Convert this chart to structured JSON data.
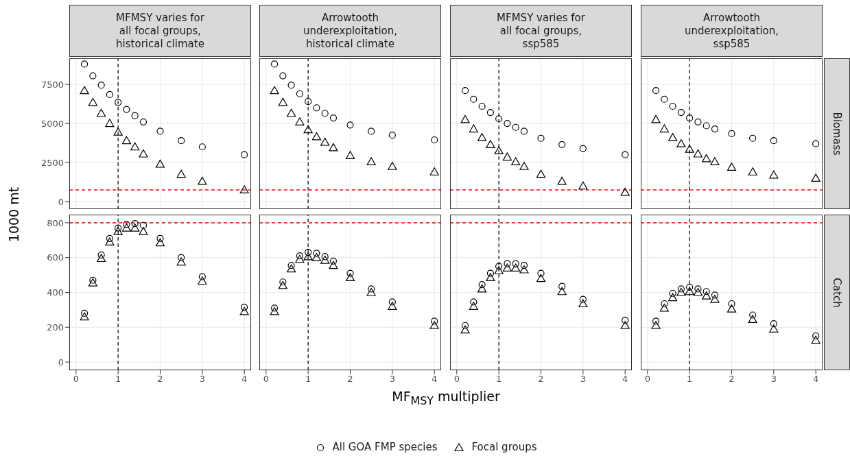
{
  "chart_data": [
    {
      "type": "scatter",
      "title": "MFMSY varies for\nall focal groups,\nhistorical climate",
      "ylabel": "1000 mt",
      "legend": "bottom",
      "grid": true,
      "tick_labels": "y",
      "x": [
        0.2,
        0.4,
        0.6,
        0.8,
        1,
        1.2,
        1.4,
        1.6,
        2,
        2.5,
        3,
        4
      ],
      "xlim": [
        -0.16,
        4.16
      ],
      "xticks": [
        0,
        1,
        2,
        3,
        4
      ],
      "ylim": [
        -480,
        9170
      ],
      "yticks": [
        0,
        2500,
        5000,
        7500
      ],
      "series": [
        {
          "name": "All GOA FMP species",
          "color": "#000000",
          "marker": "circle",
          "values": [
            8800,
            8050,
            7450,
            6850,
            6350,
            5900,
            5500,
            5100,
            4500,
            3900,
            3500,
            3000
          ]
        },
        {
          "name": "Focal groups",
          "color": "#000000",
          "marker": "triangle",
          "values": [
            7100,
            6350,
            5650,
            5000,
            4450,
            3900,
            3500,
            3050,
            2400,
            1750,
            1300,
            750
          ]
        }
      ],
      "ref_lines": [
        {
          "axis": "y",
          "value": 750,
          "color": "#ff0000",
          "line_style": "dashed"
        },
        {
          "axis": "x",
          "value": 1,
          "color": "#000000",
          "line_style": "dashed"
        }
      ]
    },
    {
      "type": "scatter",
      "title": "Arrowtooth\nunderexploitation,\nhistorical climate",
      "grid": true,
      "tick_labels": false,
      "x": [
        0.2,
        0.4,
        0.6,
        0.8,
        1,
        1.2,
        1.4,
        1.6,
        2,
        2.5,
        3,
        4
      ],
      "xlim": [
        -0.16,
        4.16
      ],
      "xticks": [
        0,
        1,
        2,
        3,
        4
      ],
      "ylim": [
        -480,
        9170
      ],
      "yticks": [
        0,
        2500,
        5000,
        7500
      ],
      "series": [
        {
          "color": "#000000",
          "marker": "circle",
          "values": [
            8800,
            8050,
            7450,
            6900,
            6400,
            6000,
            5650,
            5350,
            4900,
            4500,
            4250,
            3950
          ]
        },
        {
          "color": "#000000",
          "marker": "triangle",
          "values": [
            7100,
            6350,
            5650,
            5100,
            4600,
            4150,
            3800,
            3450,
            2950,
            2550,
            2250,
            1900
          ]
        }
      ],
      "ref_lines": [
        {
          "axis": "y",
          "value": 750,
          "color": "#ff0000",
          "line_style": "dashed"
        },
        {
          "axis": "x",
          "value": 1,
          "color": "#000000",
          "line_style": "dashed"
        }
      ]
    },
    {
      "type": "scatter",
      "title": "MFMSY varies for\nall focal groups,\nssp585",
      "grid": true,
      "tick_labels": false,
      "x": [
        0.2,
        0.4,
        0.6,
        0.8,
        1,
        1.2,
        1.4,
        1.6,
        2,
        2.5,
        3,
        4
      ],
      "xlim": [
        -0.16,
        4.16
      ],
      "xticks": [
        0,
        1,
        2,
        3,
        4
      ],
      "ylim": [
        -480,
        9170
      ],
      "yticks": [
        0,
        2500,
        5000,
        7500
      ],
      "series": [
        {
          "color": "#000000",
          "marker": "circle",
          "values": [
            7100,
            6550,
            6100,
            5700,
            5300,
            5000,
            4750,
            4500,
            4050,
            3650,
            3400,
            3000
          ]
        },
        {
          "color": "#000000",
          "marker": "triangle",
          "values": [
            5250,
            4650,
            4100,
            3650,
            3250,
            2850,
            2550,
            2250,
            1750,
            1300,
            1000,
            600
          ]
        }
      ],
      "ref_lines": [
        {
          "axis": "y",
          "value": 750,
          "color": "#ff0000",
          "line_style": "dashed"
        },
        {
          "axis": "x",
          "value": 1,
          "color": "#000000",
          "line_style": "dashed"
        }
      ]
    },
    {
      "type": "scatter",
      "title": "Arrowtooth\nunderexploitation,\nssp585",
      "y2label": "Biomass",
      "grid": true,
      "tick_labels": false,
      "x": [
        0.2,
        0.4,
        0.6,
        0.8,
        1,
        1.2,
        1.4,
        1.6,
        2,
        2.5,
        3,
        4
      ],
      "xlim": [
        -0.16,
        4.16
      ],
      "xticks": [
        0,
        1,
        2,
        3,
        4
      ],
      "ylim": [
        -480,
        9170
      ],
      "yticks": [
        0,
        2500,
        5000,
        7500
      ],
      "series": [
        {
          "color": "#000000",
          "marker": "circle",
          "values": [
            7100,
            6550,
            6100,
            5700,
            5350,
            5100,
            4850,
            4650,
            4350,
            4050,
            3900,
            3700
          ]
        },
        {
          "color": "#000000",
          "marker": "triangle",
          "values": [
            5250,
            4650,
            4100,
            3700,
            3350,
            3050,
            2750,
            2550,
            2200,
            1900,
            1700,
            1500
          ]
        }
      ],
      "ref_lines": [
        {
          "axis": "y",
          "value": 750,
          "color": "#ff0000",
          "line_style": "dashed"
        },
        {
          "axis": "x",
          "value": 1,
          "color": "#000000",
          "line_style": "dashed"
        }
      ]
    },
    {
      "type": "scatter",
      "grid": true,
      "x": [
        0.2,
        0.4,
        0.6,
        0.8,
        1,
        1.2,
        1.4,
        1.6,
        2,
        2.5,
        3,
        4
      ],
      "xlim": [
        -0.16,
        4.16
      ],
      "xticks": [
        0,
        1,
        2,
        3,
        4
      ],
      "ylim": [
        -47,
        847
      ],
      "yticks": [
        0,
        200,
        400,
        600,
        800
      ],
      "series": [
        {
          "color": "#000000",
          "marker": "circle",
          "values": [
            280,
            470,
            615,
            710,
            770,
            790,
            795,
            785,
            710,
            600,
            490,
            315
          ]
        },
        {
          "color": "#000000",
          "marker": "triangle",
          "values": [
            260,
            455,
            595,
            690,
            750,
            770,
            770,
            750,
            685,
            575,
            465,
            290
          ]
        }
      ],
      "ref_lines": [
        {
          "axis": "y",
          "value": 800,
          "color": "#ff0000",
          "line_style": "dashed"
        },
        {
          "axis": "x",
          "value": 1,
          "color": "#000000",
          "line_style": "dashed"
        }
      ]
    },
    {
      "type": "scatter",
      "xlabel": "MF$_{MSY}$ multiplier",
      "grid": true,
      "tick_labels": "x",
      "x": [
        0.2,
        0.4,
        0.6,
        0.8,
        1,
        1.2,
        1.4,
        1.6,
        2,
        2.5,
        3,
        4
      ],
      "xlim": [
        -0.16,
        4.16
      ],
      "xticks": [
        0,
        1,
        2,
        3,
        4
      ],
      "ylim": [
        -47,
        847
      ],
      "yticks": [
        0,
        200,
        400,
        600,
        800
      ],
      "series": [
        {
          "color": "#000000",
          "marker": "circle",
          "values": [
            310,
            460,
            555,
            610,
            630,
            625,
            605,
            580,
            510,
            420,
            345,
            235
          ]
        },
        {
          "color": "#000000",
          "marker": "triangle",
          "values": [
            290,
            440,
            535,
            590,
            605,
            600,
            585,
            555,
            485,
            400,
            320,
            210
          ]
        }
      ],
      "ref_lines": [
        {
          "axis": "y",
          "value": 800,
          "color": "#ff0000",
          "line_style": "dashed"
        },
        {
          "axis": "x",
          "value": 1,
          "color": "#000000",
          "line_style": "dashed"
        }
      ]
    },
    {
      "type": "scatter",
      "grid": true,
      "tick_labels": "x",
      "x": [
        0.2,
        0.4,
        0.6,
        0.8,
        1,
        1.2,
        1.4,
        1.6,
        2,
        2.5,
        3,
        4
      ],
      "xlim": [
        -0.16,
        4.16
      ],
      "xticks": [
        0,
        1,
        2,
        3,
        4
      ],
      "ylim": [
        -47,
        847
      ],
      "yticks": [
        0,
        200,
        400,
        600,
        800
      ],
      "series": [
        {
          "color": "#000000",
          "marker": "circle",
          "values": [
            210,
            345,
            445,
            510,
            550,
            565,
            565,
            555,
            510,
            435,
            360,
            240
          ]
        },
        {
          "color": "#000000",
          "marker": "triangle",
          "values": [
            185,
            320,
            420,
            485,
            525,
            540,
            540,
            530,
            480,
            405,
            335,
            210
          ]
        }
      ],
      "ref_lines": [
        {
          "axis": "y",
          "value": 800,
          "color": "#ff0000",
          "line_style": "dashed"
        },
        {
          "axis": "x",
          "value": 1,
          "color": "#000000",
          "line_style": "dashed"
        }
      ]
    },
    {
      "type": "scatter",
      "y2label": "Catch",
      "grid": true,
      "tick_labels": "x",
      "x": [
        0.2,
        0.4,
        0.6,
        0.8,
        1,
        1.2,
        1.4,
        1.6,
        2,
        2.5,
        3,
        4
      ],
      "xlim": [
        -0.16,
        4.16
      ],
      "xticks": [
        0,
        1,
        2,
        3,
        4
      ],
      "ylim": [
        -47,
        847
      ],
      "yticks": [
        0,
        200,
        400,
        600,
        800
      ],
      "series": [
        {
          "color": "#000000",
          "marker": "circle",
          "values": [
            235,
            335,
            395,
            420,
            430,
            420,
            405,
            385,
            335,
            270,
            220,
            150
          ]
        },
        {
          "color": "#000000",
          "marker": "triangle",
          "values": [
            210,
            310,
            370,
            400,
            405,
            400,
            380,
            360,
            305,
            245,
            190,
            125
          ]
        }
      ],
      "ref_lines": [
        {
          "axis": "y",
          "value": 800,
          "color": "#ff0000",
          "line_style": "dashed"
        },
        {
          "axis": "x",
          "value": 1,
          "color": "#000000",
          "line_style": "dashed"
        }
      ]
    }
  ]
}
